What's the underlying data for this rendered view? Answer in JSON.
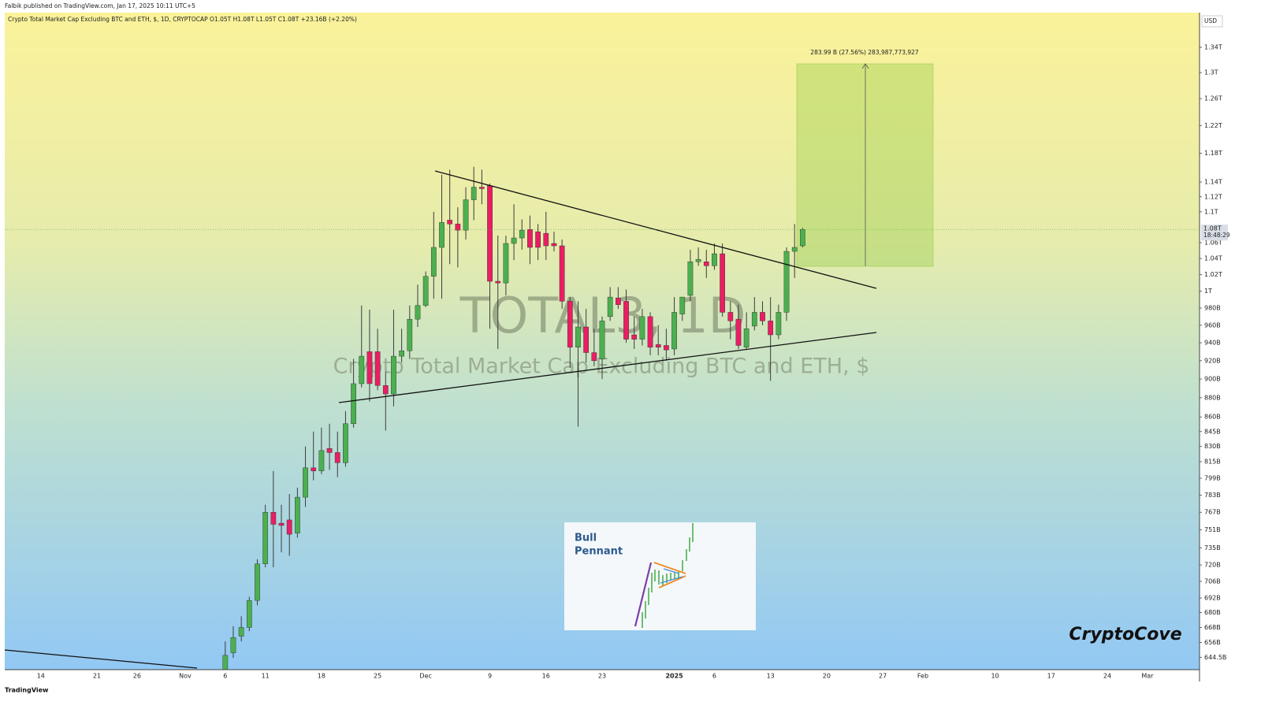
{
  "chart_data": {
    "type": "candlestick",
    "published": "Falbik published on TradingView.com, Jan 17, 2025 10:11 UTC+5",
    "title": "Crypto Total Market Cap Excluding BTC and ETH, $, 1D, CRYPTOCAP  O1.05T  H1.08T  L1.05T  C1.08T  +23.16B (+2.20%)",
    "watermark_symbol": "TOTAL3, 1D",
    "watermark_name": "Crypto Total Market Cap Excluding BTC and ETH, $",
    "currency": "USD",
    "last_price_label": "1.08T",
    "countdown": "18:48:29",
    "measure_label": "283.99 B (27.56%) 283,987,773,927",
    "inset_title": [
      "Bull",
      "Pennant"
    ],
    "author_mark": "CryptoCove",
    "platform": "TradingView",
    "log_scale": true,
    "grid": false,
    "up_color": "#4caf50",
    "down_color": "#e91e63",
    "wick_color": "#3c3c3c",
    "ylim": [
      635,
      1397
    ],
    "yticks": [
      {
        "value": 1340,
        "label": "1.34T"
      },
      {
        "value": 1300,
        "label": "1.3T"
      },
      {
        "value": 1260,
        "label": "1.26T"
      },
      {
        "value": 1220,
        "label": "1.22T"
      },
      {
        "value": 1180,
        "label": "1.18T"
      },
      {
        "value": 1140,
        "label": "1.14T"
      },
      {
        "value": 1120,
        "label": "1.12T"
      },
      {
        "value": 1100,
        "label": "1.1T"
      },
      {
        "value": 1060,
        "label": "1.06T"
      },
      {
        "value": 1040,
        "label": "1.04T"
      },
      {
        "value": 1020,
        "label": "1.02T"
      },
      {
        "value": 1000,
        "label": "1T"
      },
      {
        "value": 980,
        "label": "980B"
      },
      {
        "value": 960,
        "label": "960B"
      },
      {
        "value": 940,
        "label": "940B"
      },
      {
        "value": 920,
        "label": "920B"
      },
      {
        "value": 900,
        "label": "900B"
      },
      {
        "value": 880,
        "label": "880B"
      },
      {
        "value": 860,
        "label": "860B"
      },
      {
        "value": 845,
        "label": "845B"
      },
      {
        "value": 830,
        "label": "830B"
      },
      {
        "value": 815,
        "label": "815B"
      },
      {
        "value": 799,
        "label": "799B"
      },
      {
        "value": 783,
        "label": "783B"
      },
      {
        "value": 767,
        "label": "767B"
      },
      {
        "value": 751,
        "label": "751B"
      },
      {
        "value": 735,
        "label": "735B"
      },
      {
        "value": 720,
        "label": "720B"
      },
      {
        "value": 706,
        "label": "706B"
      },
      {
        "value": 692,
        "label": "692B"
      },
      {
        "value": 680,
        "label": "680B"
      },
      {
        "value": 668,
        "label": "668B"
      },
      {
        "value": 656,
        "label": "656B"
      },
      {
        "value": 644.5,
        "label": "644.5B"
      }
    ],
    "categories": [
      null,
      null,
      null,
      null,
      "14",
      null,
      null,
      null,
      null,
      null,
      null,
      "21",
      null,
      null,
      null,
      null,
      "26",
      null,
      null,
      null,
      null,
      null,
      "Nov",
      null,
      null,
      null,
      null,
      "6",
      null,
      null,
      null,
      null,
      "11",
      null,
      null,
      null,
      null,
      null,
      null,
      "18",
      null,
      null,
      null,
      null,
      null,
      null,
      "25",
      null,
      null,
      null,
      null,
      null,
      "Dec",
      null,
      null,
      null,
      null,
      null,
      null,
      null,
      "9",
      null,
      null,
      null,
      null,
      null,
      null,
      "16",
      null,
      null,
      null,
      null,
      null,
      null,
      "23",
      null,
      null,
      null,
      null,
      null,
      null,
      null,
      null,
      "2025",
      null,
      null,
      null,
      null,
      "6",
      null,
      null,
      null,
      null,
      null,
      null,
      "13",
      null,
      null,
      null,
      null,
      null,
      null,
      "20",
      null,
      null,
      null,
      null,
      null,
      null,
      "27",
      null,
      null,
      null,
      null,
      "Feb",
      null,
      null,
      null,
      null,
      null,
      null,
      null,
      null,
      "10",
      null,
      null,
      null,
      null,
      null,
      null,
      "17",
      null,
      null,
      null,
      null,
      null,
      null,
      "24",
      null,
      null,
      null,
      null,
      "Mar",
      null,
      null,
      null,
      null,
      null,
      null
    ],
    "open": [
      null,
      null,
      null,
      null,
      null,
      null,
      null,
      null,
      null,
      null,
      null,
      null,
      null,
      null,
      null,
      null,
      null,
      null,
      null,
      null,
      null,
      null,
      null,
      null,
      null,
      null,
      null,
      632,
      648,
      661,
      668,
      690,
      721,
      767,
      757,
      760,
      748,
      781,
      809,
      806,
      828,
      824,
      814,
      853,
      895,
      930,
      930,
      893,
      884,
      925,
      931,
      967,
      983,
      1018,
      1054,
      1089,
      1084,
      1076,
      1116,
      1133,
      1135,
      1012,
      1010,
      1059,
      1066,
      1077,
      1074,
      1072,
      1059,
      1056,
      988,
      935,
      958,
      929,
      922,
      970,
      992,
      988,
      949,
      944,
      970,
      938,
      937,
      933,
      973,
      995,
      1036,
      1036,
      1031,
      1046,
      975,
      967,
      935,
      959,
      975,
      965,
      949,
      975,
      1049,
      1056,
      null,
      null,
      null,
      null,
      null,
      null,
      null,
      null,
      null,
      null,
      null,
      null,
      null,
      null,
      null,
      null,
      null,
      null,
      null,
      null,
      null,
      null,
      null,
      null,
      null,
      null,
      null,
      null,
      null,
      null,
      null,
      null,
      null,
      null,
      null,
      null,
      null,
      null,
      null,
      null,
      null,
      null,
      null,
      null,
      null,
      null,
      null,
      null,
      null
    ],
    "high": [
      null,
      null,
      null,
      null,
      null,
      null,
      null,
      null,
      null,
      null,
      null,
      null,
      null,
      null,
      null,
      null,
      null,
      null,
      null,
      null,
      null,
      null,
      null,
      null,
      null,
      null,
      null,
      657,
      669,
      677,
      693,
      725,
      774,
      806,
      774,
      784,
      790,
      830,
      845,
      849,
      853,
      845,
      866,
      922,
      983,
      978,
      956,
      908,
      978,
      956,
      983,
      1008,
      1024,
      1100,
      1150,
      1157,
      1106,
      1133,
      1161,
      1157,
      1138,
      1069,
      1069,
      1110,
      1090,
      1095,
      1084,
      1100,
      1074,
      1064,
      993,
      988,
      979,
      956,
      970,
      1005,
      1005,
      1002,
      970,
      979,
      975,
      960,
      956,
      993,
      993,
      1051,
      1054,
      1051,
      1059,
      1059,
      988,
      984,
      975,
      993,
      988,
      993,
      984,
      1054,
      1084,
      1079,
      null,
      null,
      null,
      null,
      null,
      null,
      null,
      null,
      null,
      null,
      null,
      null,
      null,
      null,
      null,
      null,
      null,
      null,
      null,
      null,
      null,
      null,
      null,
      null,
      null,
      null,
      null,
      null,
      null,
      null,
      null,
      null,
      null,
      null,
      null,
      null,
      null,
      null,
      null,
      null,
      null,
      null,
      null,
      null,
      null,
      null,
      null,
      null,
      null
    ],
    "low": [
      null,
      null,
      null,
      null,
      null,
      null,
      null,
      null,
      null,
      null,
      null,
      null,
      null,
      null,
      null,
      null,
      null,
      null,
      null,
      null,
      null,
      null,
      null,
      null,
      null,
      null,
      null,
      630,
      644,
      657,
      665,
      686,
      718,
      718,
      731,
      728,
      744,
      772,
      797,
      803,
      807,
      800,
      810,
      849,
      891,
      876,
      888,
      846,
      871,
      918,
      922,
      958,
      981,
      991,
      991,
      1033,
      1029,
      1064,
      1089,
      1110,
      956,
      933,
      995,
      1038,
      1051,
      1033,
      1038,
      1038,
      1049,
      979,
      912,
      850,
      918,
      914,
      900,
      965,
      979,
      940,
      933,
      937,
      926,
      926,
      920,
      926,
      965,
      988,
      1031,
      1016,
      1026,
      970,
      944,
      933,
      933,
      954,
      960,
      898,
      944,
      965,
      1016,
      1054,
      null,
      null,
      null,
      null,
      null,
      null,
      null,
      null,
      null,
      null,
      null,
      null,
      null,
      null,
      null,
      null,
      null,
      null,
      null,
      null,
      null,
      null,
      null,
      null,
      null,
      null,
      null,
      null,
      null,
      null,
      null,
      null,
      null,
      null,
      null,
      null,
      null,
      null,
      null,
      null,
      null,
      null,
      null,
      null,
      null,
      null,
      null,
      null,
      null
    ],
    "close": [
      null,
      null,
      null,
      null,
      null,
      null,
      null,
      null,
      null,
      null,
      null,
      null,
      null,
      null,
      null,
      null,
      null,
      null,
      null,
      null,
      null,
      null,
      null,
      null,
      null,
      null,
      null,
      646,
      660,
      668,
      690,
      721,
      767,
      756,
      755,
      747,
      781,
      809,
      806,
      826,
      824,
      814,
      853,
      895,
      925,
      895,
      893,
      884,
      925,
      931,
      967,
      983,
      1018,
      1054,
      1086,
      1084,
      1076,
      1116,
      1133,
      1131,
      1012,
      1010,
      1059,
      1066,
      1076,
      1054,
      1054,
      1056,
      1056,
      988,
      935,
      958,
      929,
      920,
      965,
      993,
      984,
      944,
      944,
      970,
      935,
      935,
      932,
      975,
      993,
      1036,
      1039,
      1031,
      1046,
      975,
      965,
      937,
      956,
      975,
      965,
      949,
      975,
      1049,
      1054,
      1077,
      null,
      null,
      null,
      null,
      null,
      null,
      null,
      null,
      null,
      null,
      null,
      null,
      null,
      null,
      null,
      null,
      null,
      null,
      null,
      null,
      null,
      null,
      null,
      null,
      null,
      null,
      null,
      null,
      null,
      null,
      null,
      null,
      null,
      null,
      null,
      null,
      null,
      null,
      null,
      null,
      null,
      null,
      null,
      null,
      null,
      null,
      null,
      null,
      null
    ]
  }
}
